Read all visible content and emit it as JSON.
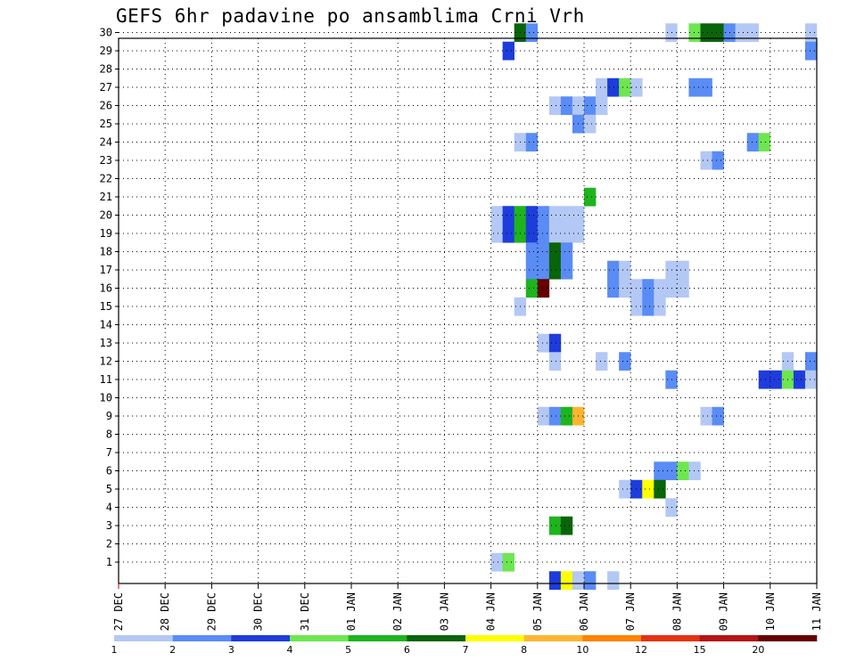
{
  "chart_data": {
    "type": "heatmap",
    "title": "GEFS 6hr padavine po ansamblima Crni Vrh",
    "x_tick_labels": [
      "27 DEC",
      "28 DEC",
      "29 DEC",
      "30 DEC",
      "31 DEC",
      "01 JAN",
      "02 JAN",
      "03 JAN",
      "04 JAN",
      "05 JAN",
      "06 JAN",
      "07 JAN",
      "08 JAN",
      "09 JAN",
      "10 JAN",
      "11 JAN"
    ],
    "y_tick_labels": [
      "1",
      "2",
      "3",
      "4",
      "5",
      "6",
      "7",
      "8",
      "9",
      "10",
      "11",
      "12",
      "13",
      "14",
      "15",
      "16",
      "17",
      "18",
      "19",
      "20",
      "21",
      "22",
      "23",
      "24",
      "25",
      "26",
      "27",
      "28",
      "29",
      "30"
    ],
    "x_range_days": [
      0,
      15
    ],
    "time_step_hours": 6,
    "grid": true,
    "colorbar": {
      "position": "bottom",
      "bounds": [
        1,
        2,
        3,
        4,
        5,
        6,
        7,
        8,
        10,
        12,
        15,
        20
      ],
      "labels": [
        "1",
        "2",
        "3",
        "4",
        "5",
        "6",
        "7",
        "8",
        "10",
        "12",
        "15",
        "20"
      ],
      "colors": [
        "#b4c8f5",
        "#5a8cf5",
        "#1e3cdc",
        "#6ee650",
        "#1eb41e",
        "#0a640a",
        "#ffff00",
        "#ffb432",
        "#ff8200",
        "#e63214",
        "#b41414",
        "#640000"
      ]
    },
    "cells": [
      {
        "member": 30,
        "t": [
          34
        ],
        "c": 6
      },
      {
        "member": 30,
        "t": [
          35
        ],
        "c": 2
      },
      {
        "member": 30,
        "t": [
          47
        ],
        "c": 1
      },
      {
        "member": 30,
        "t": [
          49
        ],
        "c": 4
      },
      {
        "member": 30,
        "t": [
          50,
          51
        ],
        "c": 6
      },
      {
        "member": 30,
        "t": [
          52
        ],
        "c": 2
      },
      {
        "member": 30,
        "t": [
          53,
          54
        ],
        "c": 1
      },
      {
        "member": 30,
        "t": [
          59
        ],
        "c": 1
      },
      {
        "member": 29,
        "t": [
          33
        ],
        "c": 3
      },
      {
        "member": 29,
        "t": [
          59
        ],
        "c": 2
      },
      {
        "member": 27,
        "t": [
          41
        ],
        "c": 1
      },
      {
        "member": 27,
        "t": [
          42
        ],
        "c": 3
      },
      {
        "member": 27,
        "t": [
          43
        ],
        "c": 4
      },
      {
        "member": 27,
        "t": [
          44
        ],
        "c": 1
      },
      {
        "member": 27,
        "t": [
          49,
          50
        ],
        "c": 2
      },
      {
        "member": 27,
        "t": [
          60
        ],
        "c": 1
      },
      {
        "member": 26,
        "t": [
          37
        ],
        "c": 1
      },
      {
        "member": 26,
        "t": [
          38
        ],
        "c": 2
      },
      {
        "member": 26,
        "t": [
          39
        ],
        "c": 1
      },
      {
        "member": 26,
        "t": [
          40
        ],
        "c": 2
      },
      {
        "member": 26,
        "t": [
          41
        ],
        "c": 1
      },
      {
        "member": 25,
        "t": [
          39
        ],
        "c": 2
      },
      {
        "member": 25,
        "t": [
          40
        ],
        "c": 1
      },
      {
        "member": 24,
        "t": [
          34
        ],
        "c": 1
      },
      {
        "member": 24,
        "t": [
          35
        ],
        "c": 2
      },
      {
        "member": 24,
        "t": [
          54
        ],
        "c": 2
      },
      {
        "member": 24,
        "t": [
          55
        ],
        "c": 4
      },
      {
        "member": 23,
        "t": [
          50
        ],
        "c": 1
      },
      {
        "member": 23,
        "t": [
          51
        ],
        "c": 2
      },
      {
        "member": 21,
        "t": [
          40
        ],
        "c": 5
      },
      {
        "member": 20,
        "t": [
          32
        ],
        "c": 1
      },
      {
        "member": 20,
        "t": [
          33
        ],
        "c": 3
      },
      {
        "member": 20,
        "t": [
          34
        ],
        "c": 5
      },
      {
        "member": 20,
        "t": [
          35
        ],
        "c": 3
      },
      {
        "member": 20,
        "t": [
          36
        ],
        "c": 2
      },
      {
        "member": 20,
        "t": [
          37,
          38,
          39
        ],
        "c": 1
      },
      {
        "member": 19,
        "t": [
          32
        ],
        "c": 1
      },
      {
        "member": 19,
        "t": [
          33
        ],
        "c": 3
      },
      {
        "member": 19,
        "t": [
          34
        ],
        "c": 5
      },
      {
        "member": 19,
        "t": [
          35
        ],
        "c": 3
      },
      {
        "member": 19,
        "t": [
          36
        ],
        "c": 2
      },
      {
        "member": 19,
        "t": [
          37,
          38,
          39
        ],
        "c": 1
      },
      {
        "member": 18,
        "t": [
          35,
          36
        ],
        "c": 2
      },
      {
        "member": 18,
        "t": [
          37
        ],
        "c": 6
      },
      {
        "member": 18,
        "t": [
          38
        ],
        "c": 2
      },
      {
        "member": 17,
        "t": [
          35,
          36
        ],
        "c": 2
      },
      {
        "member": 17,
        "t": [
          37
        ],
        "c": 6
      },
      {
        "member": 17,
        "t": [
          38
        ],
        "c": 2
      },
      {
        "member": 17,
        "t": [
          42
        ],
        "c": 2
      },
      {
        "member": 17,
        "t": [
          43
        ],
        "c": 1
      },
      {
        "member": 17,
        "t": [
          47,
          48
        ],
        "c": 1
      },
      {
        "member": 16,
        "t": [
          35
        ],
        "c": 5
      },
      {
        "member": 16,
        "t": [
          36
        ],
        "c": 12
      },
      {
        "member": 16,
        "t": [
          42
        ],
        "c": 2
      },
      {
        "member": 16,
        "t": [
          43
        ],
        "c": 1
      },
      {
        "member": 16,
        "t": [
          44
        ],
        "c": 1
      },
      {
        "member": 16,
        "t": [
          45
        ],
        "c": 2
      },
      {
        "member": 16,
        "t": [
          46
        ],
        "c": 1
      },
      {
        "member": 16,
        "t": [
          47,
          48
        ],
        "c": 1
      },
      {
        "member": 15,
        "t": [
          34
        ],
        "c": 1
      },
      {
        "member": 15,
        "t": [
          44
        ],
        "c": 1
      },
      {
        "member": 15,
        "t": [
          45
        ],
        "c": 2
      },
      {
        "member": 15,
        "t": [
          46
        ],
        "c": 1
      },
      {
        "member": 13,
        "t": [
          36
        ],
        "c": 1
      },
      {
        "member": 13,
        "t": [
          37
        ],
        "c": 3
      },
      {
        "member": 12,
        "t": [
          37
        ],
        "c": 1
      },
      {
        "member": 12,
        "t": [
          41
        ],
        "c": 1
      },
      {
        "member": 12,
        "t": [
          43
        ],
        "c": 2
      },
      {
        "member": 12,
        "t": [
          57
        ],
        "c": 1
      },
      {
        "member": 12,
        "t": [
          59
        ],
        "c": 2
      },
      {
        "member": 11,
        "t": [
          47
        ],
        "c": 2
      },
      {
        "member": 11,
        "t": [
          55,
          56
        ],
        "c": 3
      },
      {
        "member": 11,
        "t": [
          57
        ],
        "c": 4
      },
      {
        "member": 11,
        "t": [
          58
        ],
        "c": 3
      },
      {
        "member": 11,
        "t": [
          59
        ],
        "c": 1
      },
      {
        "member": 10,
        "t": [
          60
        ],
        "c": 1
      },
      {
        "member": 9,
        "t": [
          36
        ],
        "c": 1
      },
      {
        "member": 9,
        "t": [
          37
        ],
        "c": 2
      },
      {
        "member": 9,
        "t": [
          38
        ],
        "c": 5
      },
      {
        "member": 9,
        "t": [
          39
        ],
        "c": 8
      },
      {
        "member": 9,
        "t": [
          50
        ],
        "c": 1
      },
      {
        "member": 9,
        "t": [
          51
        ],
        "c": 2
      },
      {
        "member": 6,
        "t": [
          46,
          47
        ],
        "c": 2
      },
      {
        "member": 6,
        "t": [
          48
        ],
        "c": 4
      },
      {
        "member": 6,
        "t": [
          49
        ],
        "c": 1
      },
      {
        "member": 6,
        "t": [
          60
        ],
        "c": 1
      },
      {
        "member": 5,
        "t": [
          43
        ],
        "c": 1
      },
      {
        "member": 5,
        "t": [
          44
        ],
        "c": 3
      },
      {
        "member": 5,
        "t": [
          45
        ],
        "c": 7
      },
      {
        "member": 5,
        "t": [
          46
        ],
        "c": 6
      },
      {
        "member": 4,
        "t": [
          47
        ],
        "c": 1
      },
      {
        "member": 3,
        "t": [
          37
        ],
        "c": 5
      },
      {
        "member": 3,
        "t": [
          38
        ],
        "c": 6
      },
      {
        "member": 1,
        "t": [
          32
        ],
        "c": 1
      },
      {
        "member": 1,
        "t": [
          33
        ],
        "c": 4
      },
      {
        "member": 0,
        "t": [
          37
        ],
        "c": 3
      },
      {
        "member": 0,
        "t": [
          38
        ],
        "c": 7
      },
      {
        "member": 0,
        "t": [
          39
        ],
        "c": 1
      },
      {
        "member": 0,
        "t": [
          40
        ],
        "c": 2
      },
      {
        "member": 0,
        "t": [
          42
        ],
        "c": 1
      }
    ]
  }
}
